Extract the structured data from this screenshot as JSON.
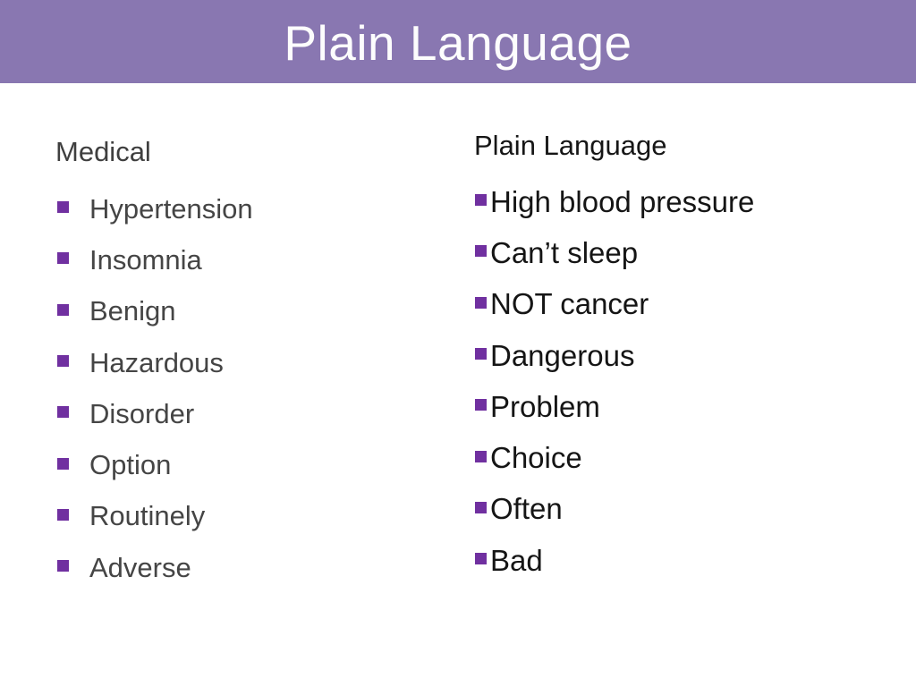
{
  "slide": {
    "title": "Plain Language",
    "colors": {
      "header_bg": "#8977b1",
      "title_text": "#fdfdfd",
      "bullet_square": "#7030a0",
      "left_text": "#454545",
      "right_text": "#151515"
    },
    "left_column": {
      "heading": "Medical",
      "items": [
        "Hypertension",
        "Insomnia",
        "Benign",
        "Hazardous",
        "Disorder",
        "Option",
        "Routinely",
        "Adverse"
      ]
    },
    "right_column": {
      "heading": "Plain Language",
      "items": [
        "High blood pressure",
        "Can’t sleep",
        "NOT cancer",
        "Dangerous",
        "Problem",
        "Choice",
        "Often",
        "Bad"
      ]
    }
  }
}
